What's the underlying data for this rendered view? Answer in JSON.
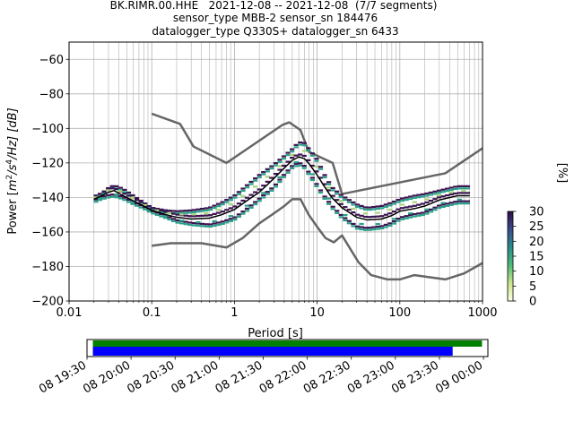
{
  "header": {
    "line1": "BK.RIMR.00.HHE   2021-12-08 -- 2021-12-08  (7/7 segments)",
    "line2": "sensor_type MBB-2 sensor_sn 184476",
    "line3": "datalogger_type Q330S+ datalogger_sn 6433"
  },
  "colors": {
    "noise_model": "#666666",
    "mean_curve": "#000000",
    "high_density": "#3b1450",
    "mid_density": "#2aa189",
    "low_density": "#a9d47a",
    "bar_green": "#008000",
    "bar_blue": "#0000ff"
  },
  "chart_data": [
    {
      "type": "heatmap",
      "ylabel_pre": "Power [",
      "ylabel_unit_base": "m",
      "ylabel_unit_exp1": "2",
      "ylabel_unit_mid": "/s",
      "ylabel_unit_exp2": "4",
      "ylabel_unit_end": "/Hz] [dB]",
      "xlabel": "Period [s]",
      "xscale": "log",
      "xlim": [
        0.01,
        1000
      ],
      "ylim": [
        -200,
        -50
      ],
      "x_tick_labels": [
        "0.01",
        "0.1",
        "1",
        "10",
        "100",
        "1000"
      ],
      "x_ticks": [
        0.01,
        0.1,
        1,
        10,
        100,
        1000
      ],
      "y_ticks": [
        -60,
        -80,
        -100,
        -120,
        -140,
        -160,
        -180,
        -200
      ],
      "y_tick_labels": [
        "−60",
        "−80",
        "−100",
        "−120",
        "−140",
        "−160",
        "−180",
        "−200"
      ],
      "grid": true,
      "colorbar": {
        "label": "[%]",
        "range": [
          0,
          30
        ],
        "ticks": [
          0,
          5,
          10,
          15,
          20,
          25,
          30
        ],
        "tick_labels": [
          "0",
          "5",
          "10",
          "15",
          "20",
          "25",
          "30"
        ]
      },
      "series": [
        {
          "role": "noise_high",
          "x": [
            0.1,
            0.22,
            0.32,
            0.8,
            3.8,
            4.6,
            6.3,
            7.9,
            15.4,
            20,
            354.8,
            1000
          ],
          "y": [
            -91.5,
            -97.4,
            -110.5,
            -120,
            -98,
            -96.5,
            -101,
            -113.5,
            -120,
            -138,
            -126,
            -111.5
          ]
        },
        {
          "role": "noise_low",
          "x": [
            0.1,
            0.17,
            0.4,
            0.8,
            1.26,
            2,
            3.16,
            4,
            5,
            6.3,
            7.9,
            10,
            12.6,
            15.9,
            20,
            31.6,
            45,
            70.8,
            100,
            150,
            354.8,
            600,
            1000
          ],
          "y": [
            -168,
            -166.5,
            -166.5,
            -169,
            -163.5,
            -155,
            -148.5,
            -145,
            -141,
            -141,
            -150,
            -157,
            -163.5,
            -166,
            -162,
            -177.5,
            -185,
            -187.5,
            -187.5,
            -185,
            -187.5,
            -184,
            -178
          ]
        },
        {
          "role": "mean",
          "x": [
            0.02,
            0.025,
            0.03,
            0.035,
            0.045,
            0.06,
            0.08,
            0.1,
            0.15,
            0.2,
            0.3,
            0.5,
            0.7,
            1,
            1.5,
            2,
            3,
            4,
            5,
            6,
            7,
            8,
            10,
            12,
            15,
            20,
            30,
            40,
            60,
            80,
            100,
            150,
            200,
            300,
            500,
            700
          ],
          "y": [
            -141,
            -139,
            -137,
            -136,
            -139,
            -142,
            -145,
            -147.5,
            -150,
            -151.5,
            -152.5,
            -152,
            -150,
            -147,
            -141,
            -137,
            -129,
            -123,
            -118.5,
            -116.5,
            -117.5,
            -120.5,
            -127,
            -133,
            -140,
            -146,
            -151.5,
            -153,
            -152.5,
            -150.5,
            -148,
            -146.5,
            -145,
            -141.5,
            -139,
            -139
          ]
        },
        {
          "role": "density_upper",
          "x": [
            0.02,
            0.025,
            0.03,
            0.035,
            0.045,
            0.06,
            0.08,
            0.1,
            0.15,
            0.2,
            0.3,
            0.5,
            0.7,
            1,
            1.5,
            2,
            3,
            4,
            5,
            6,
            7,
            8,
            10,
            12,
            15,
            20,
            30,
            40,
            60,
            80,
            100,
            150,
            200,
            300,
            500,
            700
          ],
          "y": [
            -140,
            -137.5,
            -134.5,
            -133,
            -135,
            -139,
            -143,
            -146,
            -147.5,
            -148,
            -147.5,
            -146,
            -143,
            -139,
            -132,
            -127,
            -121,
            -116,
            -112,
            -108,
            -108.5,
            -112,
            -118,
            -126,
            -134,
            -139,
            -144,
            -146,
            -145,
            -143,
            -141,
            -139,
            -138,
            -136,
            -133.5,
            -133.5
          ]
        },
        {
          "role": "density_lower",
          "x": [
            0.02,
            0.025,
            0.03,
            0.035,
            0.045,
            0.06,
            0.08,
            0.1,
            0.15,
            0.2,
            0.3,
            0.5,
            0.7,
            1,
            1.5,
            2,
            3,
            4,
            5,
            6,
            7,
            8,
            10,
            12,
            15,
            20,
            30,
            40,
            60,
            80,
            100,
            150,
            200,
            300,
            500,
            700
          ],
          "y": [
            -143,
            -141,
            -140,
            -139.5,
            -141,
            -144,
            -146.5,
            -149,
            -152,
            -154.5,
            -156,
            -157,
            -155.5,
            -153,
            -147,
            -142,
            -135,
            -128,
            -123,
            -121,
            -123,
            -127,
            -134,
            -140,
            -146,
            -152,
            -158,
            -159,
            -158,
            -156,
            -153,
            -151,
            -150,
            -146,
            -143.5,
            -143.5
          ]
        }
      ]
    },
    {
      "type": "bar",
      "x_tick_labels": [
        "08 19:30",
        "08 20:00",
        "08 20:30",
        "08 21:00",
        "08 21:30",
        "08 22:00",
        "08 22:30",
        "08 23:00",
        "08 23:30",
        "09 00:00"
      ],
      "x_ticks_minutes": [
        1170,
        1200,
        1230,
        1260,
        1290,
        1320,
        1350,
        1380,
        1410,
        1440
      ],
      "xlim_minutes": [
        1170,
        1443
      ],
      "bars": [
        {
          "role": "green",
          "start": 1174,
          "end": 1439
        },
        {
          "role": "blue",
          "start": 1174,
          "end": 1419
        }
      ]
    }
  ]
}
